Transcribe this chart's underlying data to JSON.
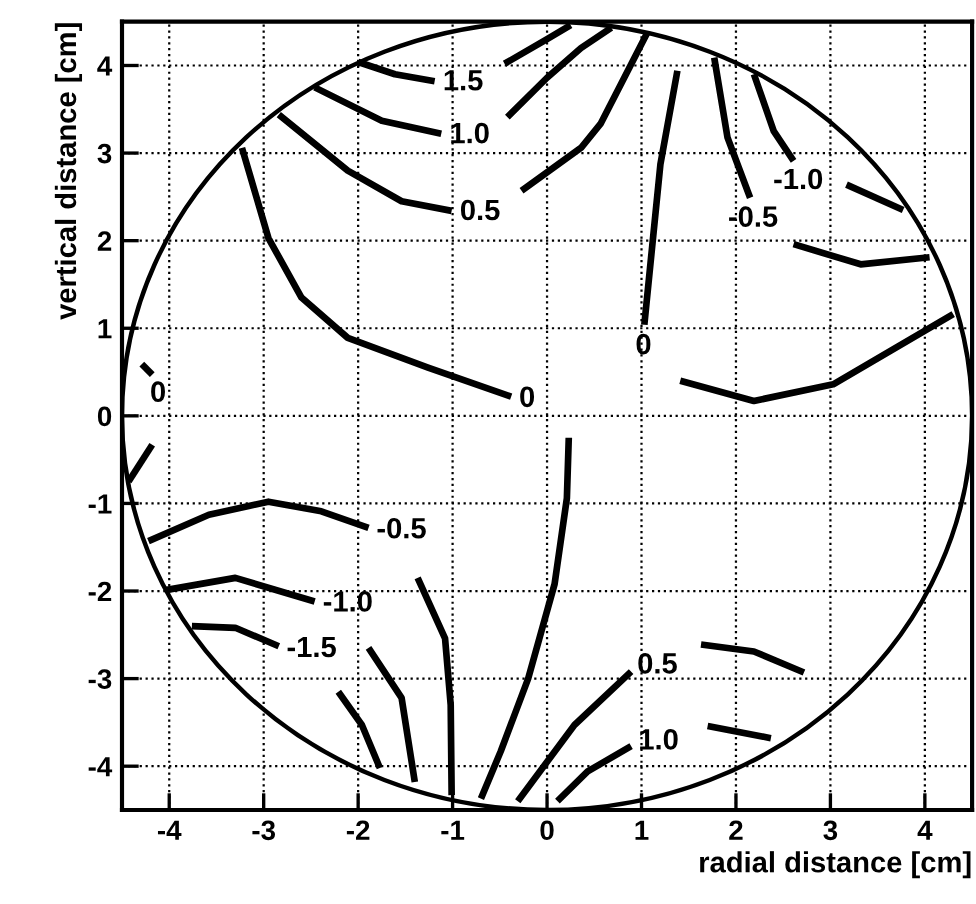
{
  "chart_data": {
    "type": "line",
    "xlabel": "radial distance [cm]",
    "ylabel": "vertical distance [cm]",
    "xlim": [
      -4.5,
      4.5
    ],
    "ylim": [
      -4.5,
      4.5
    ],
    "xticks": [
      -4,
      -3,
      -2,
      -1,
      0,
      1,
      2,
      3,
      4
    ],
    "yticks": [
      -4,
      -3,
      -2,
      -1,
      0,
      1,
      2,
      3,
      4
    ],
    "grid": true,
    "series": [
      {
        "color": "#000000",
        "name": "1.5",
        "x": [
          -2.0,
          -1.61,
          -1.19
        ],
        "values": [
          4.04,
          3.9,
          3.82
        ]
      },
      {
        "color": "#000000",
        "x": [
          -0.45,
          0.0,
          0.25
        ],
        "values": [
          4.02,
          4.3,
          4.46
        ]
      },
      {
        "color": "#000000",
        "name": "1.0",
        "x": [
          -2.46,
          -1.75,
          -1.12
        ],
        "values": [
          3.75,
          3.37,
          3.22
        ]
      },
      {
        "color": "#000000",
        "x": [
          -0.42,
          0.0,
          0.36,
          0.68
        ],
        "values": [
          3.41,
          3.86,
          4.2,
          4.43
        ]
      },
      {
        "color": "#000000",
        "name": "0.5",
        "x": [
          -2.84,
          -2.11,
          -1.54,
          -1.01
        ],
        "values": [
          3.44,
          2.8,
          2.45,
          2.34
        ]
      },
      {
        "color": "#000000",
        "x": [
          -0.27,
          0.36,
          0.57,
          1.06
        ],
        "values": [
          2.57,
          3.06,
          3.34,
          4.37
        ]
      },
      {
        "color": "#000000",
        "name": "0",
        "x": [
          -3.23,
          -2.95,
          -2.6,
          -2.11,
          -1.26,
          -0.38
        ],
        "values": [
          3.06,
          2.03,
          1.35,
          0.89,
          0.55,
          0.22
        ]
      },
      {
        "color": "#000000",
        "x": [
          0.23,
          0.21,
          0.08,
          -0.2,
          -0.49,
          -0.7
        ],
        "values": [
          -0.25,
          -0.94,
          -1.92,
          -3.0,
          -3.83,
          -4.37
        ]
      },
      {
        "color": "#000000",
        "name": "0",
        "x": [
          1.38,
          1.2,
          1.03
        ],
        "values": [
          3.94,
          2.87,
          1.04
        ]
      },
      {
        "color": "#000000",
        "x": [
          1.41,
          2.19,
          3.03,
          4.3
        ],
        "values": [
          0.4,
          0.17,
          0.36,
          1.16
        ]
      },
      {
        "color": "#000000",
        "name": "-0.5",
        "x": [
          1.77,
          1.91,
          2.15
        ],
        "values": [
          4.09,
          3.18,
          2.49
        ]
      },
      {
        "color": "#000000",
        "x": [
          2.61,
          3.32,
          4.05
        ],
        "values": [
          1.96,
          1.73,
          1.81
        ]
      },
      {
        "color": "#000000",
        "name": "-1.0",
        "x": [
          2.19,
          2.4,
          2.61
        ],
        "values": [
          3.9,
          3.25,
          2.91
        ]
      },
      {
        "color": "#000000",
        "x": [
          3.17,
          3.77
        ],
        "values": [
          2.64,
          2.35
        ]
      },
      {
        "color": "#000000",
        "name": "0",
        "x": [
          -4.29,
          -4.18
        ],
        "values": [
          0.59,
          0.47
        ]
      },
      {
        "color": "#000000",
        "x": [
          -4.18,
          -4.43
        ],
        "values": [
          -0.33,
          -0.75
        ]
      },
      {
        "color": "#000000",
        "name": "-0.5",
        "x": [
          -4.22,
          -3.58,
          -2.95,
          -2.39,
          -1.89
        ],
        "values": [
          -1.43,
          -1.13,
          -0.98,
          -1.09,
          -1.28
        ]
      },
      {
        "color": "#000000",
        "x": [
          -1.37,
          -1.08,
          -1.02,
          -1.01
        ],
        "values": [
          -1.85,
          -2.54,
          -3.3,
          -4.33
        ]
      },
      {
        "color": "#000000",
        "name": "-1.0",
        "x": [
          -4.04,
          -3.3,
          -2.46
        ],
        "values": [
          -1.99,
          -1.85,
          -2.12
        ]
      },
      {
        "color": "#000000",
        "x": [
          -1.89,
          -1.54,
          -1.4
        ],
        "values": [
          -2.65,
          -3.22,
          -4.18
        ]
      },
      {
        "color": "#000000",
        "name": "-1.5",
        "x": [
          -3.76,
          -3.3,
          -2.84
        ],
        "values": [
          -2.4,
          -2.42,
          -2.63
        ]
      },
      {
        "color": "#000000",
        "x": [
          -2.21,
          -1.96,
          -1.77
        ],
        "values": [
          -3.15,
          -3.53,
          -4.02
        ]
      },
      {
        "color": "#000000",
        "name": "0.5",
        "x": [
          -0.31,
          0.29,
          0.89
        ],
        "values": [
          -4.4,
          -3.53,
          -2.92
        ]
      },
      {
        "color": "#000000",
        "x": [
          1.63,
          2.19,
          2.72
        ],
        "values": [
          -2.61,
          -2.69,
          -2.93
        ]
      },
      {
        "color": "#000000",
        "name": "1.0",
        "x": [
          0.11,
          0.43,
          0.89
        ],
        "values": [
          -4.4,
          -4.06,
          -3.77
        ]
      },
      {
        "color": "#000000",
        "x": [
          1.7,
          2.37
        ],
        "values": [
          -3.54,
          -3.68
        ]
      }
    ]
  }
}
